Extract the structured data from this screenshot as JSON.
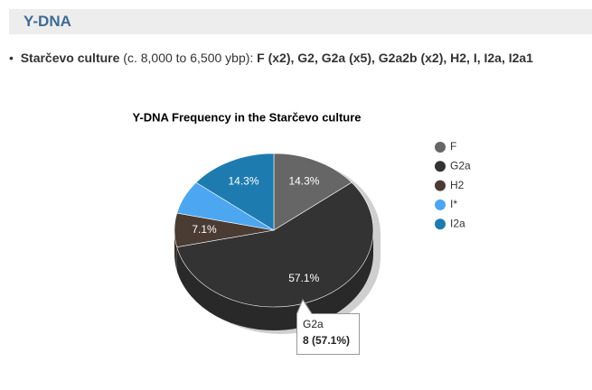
{
  "header": {
    "title": "Y-DNA"
  },
  "bullet": {
    "name": "Starčevo culture",
    "period": "(c. 8,000 to 6,500 ybp):",
    "haplogroups": "F (x2), G2, G2a (x5), G2a2b (x2), H2, I, I2a, I2a1"
  },
  "chart_data": {
    "type": "pie",
    "title": "Y-DNA Frequency in the Starčevo culture",
    "categories": [
      "F",
      "G2a",
      "H2",
      "I*",
      "I2a"
    ],
    "values": [
      14.3,
      57.1,
      7.1,
      7.1,
      14.3
    ],
    "value_labels": [
      "14.3%",
      "57.1%",
      "7.1%",
      null,
      "14.3%"
    ],
    "colors": [
      "#666666",
      "#333333",
      "#4a3b33",
      "#4da6f0",
      "#1e7bb0"
    ],
    "legend": "right",
    "tooltip": {
      "title": "G2a",
      "text": "8 (57.1%)"
    }
  }
}
